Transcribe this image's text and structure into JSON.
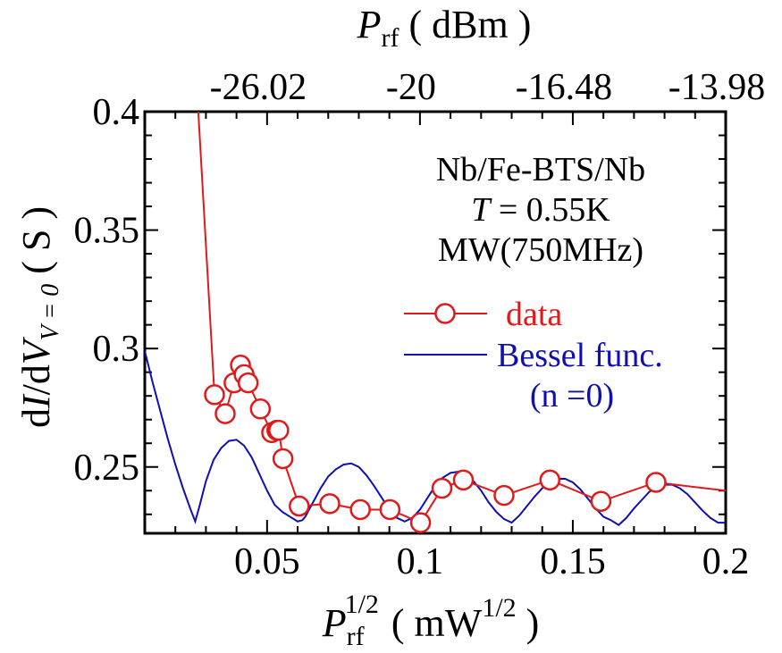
{
  "chart_data": {
    "type": "line",
    "x_axis": {
      "label_main": "P",
      "label_sub": "rf",
      "label_sup": "1/2",
      "label_unit_open": "( mW",
      "label_unit_sup": "1/2",
      "label_unit_close": " )",
      "range": [
        0.01,
        0.2
      ],
      "ticks": [
        0.05,
        0.1,
        0.15,
        0.2
      ],
      "tick_labels": [
        "0.05",
        "0.1",
        "0.15",
        "0.2"
      ]
    },
    "top_axis": {
      "label_main": "P",
      "label_sub": "rf",
      "label_unit": " ( dBm )",
      "ticks_x": [
        0.05,
        0.1,
        0.15,
        0.2
      ],
      "tick_labels": [
        "-26.02",
        "-20",
        "-16.48",
        "-13.98"
      ]
    },
    "y_axis": {
      "label_prefix": "d",
      "label_I": "I",
      "label_mid": "/d",
      "label_V": "V",
      "label_sub": "V = 0",
      "label_unit": " ( S )",
      "range": [
        0.222,
        0.4
      ],
      "ticks": [
        0.25,
        0.3,
        0.35,
        0.4
      ],
      "tick_labels": [
        "0.25",
        "0.3",
        "0.35",
        "0.4"
      ]
    },
    "annotation": {
      "line1": "Nb/Fe-BTS/Nb",
      "line2_T": "T",
      "line2_rest": " = 0.55K",
      "line3": "MW(750MHz)"
    },
    "legend": {
      "position": "right",
      "data_label": "data",
      "bessel_label_1": "Bessel func.",
      "bessel_label_2": "(n =0)"
    },
    "colors": {
      "data": "#e01a1a",
      "bessel": "#1010b0",
      "axis": "#000000"
    },
    "series": [
      {
        "name": "data",
        "style": "line+circle",
        "x": [
          0.0275,
          0.0328,
          0.0363,
          0.0392,
          0.0413,
          0.0425,
          0.0438,
          0.0478,
          0.0515,
          0.0532,
          0.0538,
          0.0552,
          0.0605,
          0.0705,
          0.0805,
          0.0902,
          0.1002,
          0.1072,
          0.1142,
          0.1275,
          0.1425,
          0.1592,
          0.1772,
          0.2
        ],
        "y": [
          0.4,
          0.2805,
          0.2725,
          0.2855,
          0.293,
          0.289,
          0.2855,
          0.2745,
          0.2645,
          0.2655,
          0.2655,
          0.2535,
          0.2335,
          0.2345,
          0.232,
          0.232,
          0.2265,
          0.241,
          0.2445,
          0.238,
          0.2445,
          0.2355,
          0.2435,
          0.24
        ]
      },
      {
        "name": "Bessel func.",
        "style": "line",
        "x": [
          0.01,
          0.0125,
          0.015,
          0.0175,
          0.02,
          0.0225,
          0.025,
          0.0265,
          0.028,
          0.03,
          0.0325,
          0.035,
          0.0375,
          0.04,
          0.0425,
          0.045,
          0.0475,
          0.05,
          0.0525,
          0.055,
          0.0575,
          0.06,
          0.0615,
          0.0625,
          0.065,
          0.0675,
          0.07,
          0.0725,
          0.075,
          0.0775,
          0.08,
          0.0825,
          0.085,
          0.0875,
          0.09,
          0.0925,
          0.095,
          0.0975,
          0.1,
          0.1025,
          0.105,
          0.1075,
          0.11,
          0.1125,
          0.115,
          0.1175,
          0.12,
          0.1225,
          0.125,
          0.1275,
          0.13,
          0.1325,
          0.135,
          0.1375,
          0.14,
          0.1425,
          0.145,
          0.1475,
          0.15,
          0.1525,
          0.155,
          0.1575,
          0.16,
          0.1625,
          0.165,
          0.1675,
          0.17,
          0.1725,
          0.175,
          0.1775,
          0.18,
          0.1825,
          0.185,
          0.1875,
          0.19,
          0.1925,
          0.195,
          0.1975,
          0.2
        ],
        "y": [
          0.299,
          0.286,
          0.274,
          0.262,
          0.251,
          0.241,
          0.232,
          0.227,
          0.234,
          0.244,
          0.253,
          0.258,
          0.261,
          0.2615,
          0.259,
          0.254,
          0.247,
          0.24,
          0.234,
          0.231,
          0.229,
          0.227,
          0.2275,
          0.229,
          0.235,
          0.241,
          0.246,
          0.249,
          0.251,
          0.2515,
          0.25,
          0.2465,
          0.242,
          0.237,
          0.232,
          0.2285,
          0.227,
          0.2285,
          0.232,
          0.237,
          0.242,
          0.2455,
          0.2475,
          0.248,
          0.247,
          0.244,
          0.24,
          0.235,
          0.231,
          0.228,
          0.2265,
          0.2295,
          0.2335,
          0.2375,
          0.241,
          0.2435,
          0.245,
          0.245,
          0.2435,
          0.2405,
          0.2365,
          0.2325,
          0.229,
          0.2275,
          0.2255,
          0.2285,
          0.2325,
          0.236,
          0.2395,
          0.2415,
          0.2425,
          0.2425,
          0.241,
          0.2385,
          0.235,
          0.2315,
          0.2285,
          0.2265,
          0.2265
        ]
      }
    ]
  }
}
